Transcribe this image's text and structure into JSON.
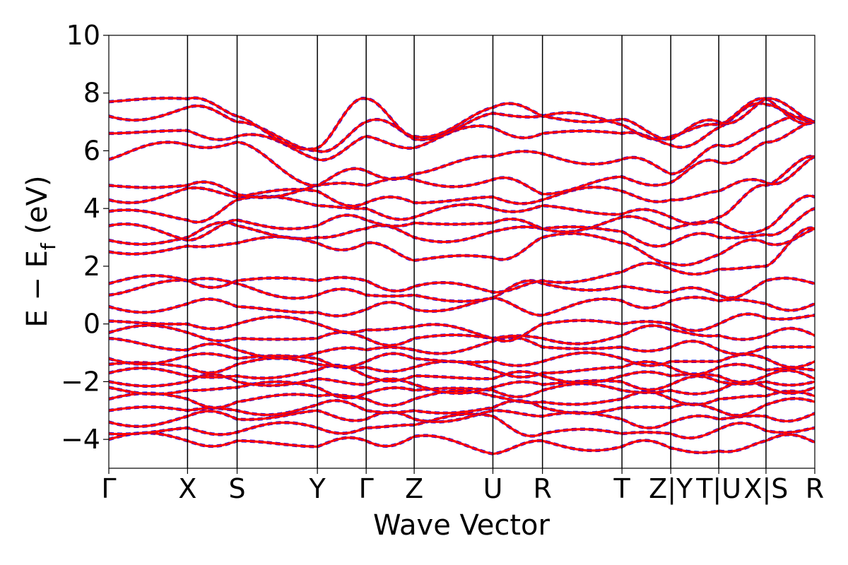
{
  "chart_data": {
    "type": "line",
    "xlabel": "Wave Vector",
    "ylabel": "E − E",
    "ylabel_subscript": "f",
    "ylabel_unit": "(eV)",
    "ylim": [
      -5,
      10
    ],
    "yticks": [
      -4,
      -2,
      0,
      2,
      4,
      6,
      8,
      10
    ],
    "grid": false,
    "legend": "none",
    "high_symmetry_points": [
      {
        "label": "Γ",
        "x": 0.0
      },
      {
        "label": "X",
        "x": 1.0
      },
      {
        "label": "S",
        "x": 1.63
      },
      {
        "label": "Y",
        "x": 2.65
      },
      {
        "label": "Γ",
        "x": 3.27
      },
      {
        "label": "Z",
        "x": 3.88
      },
      {
        "label": "U",
        "x": 4.88
      },
      {
        "label": "R",
        "x": 5.51
      },
      {
        "label": "T",
        "x": 6.52
      },
      {
        "label": "Z|Y",
        "x": 7.14
      },
      {
        "label": "T|U",
        "x": 7.75
      },
      {
        "label": "X|S",
        "x": 8.35
      },
      {
        "label": "R",
        "x": 8.97
      }
    ],
    "xlim": [
      0,
      8.97
    ],
    "series": [
      {
        "color": "#0000ff",
        "style": "dashed"
      },
      {
        "color": "#ff0000",
        "style": "solid"
      }
    ],
    "band_energies_at_symmetry_points": [
      [
        -4.0,
        -4.05,
        -4.05,
        -4.25,
        -4.05,
        -3.9,
        -4.5,
        -4.05,
        -4.25,
        -4.3,
        -4.4,
        -4.05,
        -4.1
      ],
      [
        -3.8,
        -3.6,
        -3.75,
        -3.6,
        -3.6,
        -3.5,
        -3.2,
        -3.8,
        -3.8,
        -3.8,
        -3.65,
        -3.7,
        -3.6
      ],
      [
        -3.4,
        -3.2,
        -3.3,
        -3.0,
        -3.3,
        -3.3,
        -3.0,
        -3.2,
        -3.3,
        -3.4,
        -3.3,
        -3.2,
        -3.1
      ],
      [
        -3.0,
        -3.0,
        -3.0,
        -2.8,
        -3.0,
        -3.0,
        -2.9,
        -2.9,
        -2.9,
        -2.9,
        -3.0,
        -2.8,
        -2.7
      ],
      [
        -2.6,
        -2.6,
        -2.7,
        -2.5,
        -2.6,
        -2.6,
        -2.5,
        -2.7,
        -2.6,
        -2.6,
        -2.6,
        -2.5,
        -2.5
      ],
      [
        -2.2,
        -2.3,
        -2.2,
        -2.2,
        -2.4,
        -2.3,
        -2.3,
        -2.3,
        -2.3,
        -2.3,
        -2.3,
        -2.2,
        -2.2
      ],
      [
        -2.0,
        -2.0,
        -2.0,
        -1.9,
        -2.1,
        -2.1,
        -2.2,
        -2.1,
        -2.0,
        -2.1,
        -2.0,
        -2.0,
        -2.0
      ],
      [
        -1.7,
        -1.8,
        -1.8,
        -1.6,
        -1.8,
        -1.8,
        -1.9,
        -1.8,
        -1.8,
        -1.8,
        -1.8,
        -1.8,
        -1.9
      ],
      [
        -1.4,
        -1.5,
        -1.4,
        -1.4,
        -1.5,
        -1.5,
        -1.6,
        -1.7,
        -1.5,
        -1.5,
        -1.5,
        -1.6,
        -1.6
      ],
      [
        -1.2,
        -1.1,
        -1.2,
        -1.2,
        -1.3,
        -1.2,
        -1.3,
        -1.3,
        -1.2,
        -1.3,
        -1.3,
        -1.2,
        -1.3
      ],
      [
        -0.5,
        -0.9,
        -0.9,
        -1.0,
        -0.9,
        -0.9,
        -0.6,
        -0.8,
        -0.8,
        -0.8,
        -0.9,
        -0.8,
        -0.8
      ],
      [
        -0.3,
        -0.3,
        -0.5,
        -0.5,
        -0.5,
        -0.5,
        -0.5,
        -0.5,
        -0.4,
        -0.2,
        -0.4,
        -0.4,
        -0.4
      ],
      [
        0.1,
        0.0,
        0.0,
        0.0,
        -0.2,
        -0.1,
        -0.5,
        0.0,
        0.0,
        0.0,
        0.0,
        0.2,
        0.3
      ],
      [
        0.6,
        0.7,
        0.6,
        0.4,
        0.5,
        0.5,
        0.9,
        0.3,
        0.8,
        0.8,
        0.8,
        0.7,
        0.7
      ],
      [
        1.0,
        1.5,
        1.4,
        1.0,
        1.0,
        1.0,
        0.9,
        1.4,
        1.3,
        1.1,
        1.0,
        1.5,
        1.4
      ],
      [
        1.4,
        1.5,
        1.5,
        1.5,
        1.5,
        1.3,
        1.1,
        1.5,
        1.8,
        1.9,
        1.9,
        2.0,
        3.3
      ],
      [
        2.5,
        2.7,
        2.8,
        2.8,
        2.8,
        2.2,
        2.3,
        3.0,
        2.8,
        2.1,
        2.4,
        2.8,
        3.3
      ],
      [
        2.9,
        3.0,
        3.4,
        3.0,
        3.3,
        3.0,
        3.2,
        3.3,
        3.2,
        2.8,
        3.0,
        3.1,
        4.0
      ],
      [
        3.4,
        2.9,
        3.6,
        3.4,
        3.6,
        3.5,
        3.5,
        3.3,
        3.7,
        3.3,
        3.5,
        3.3,
        4.4
      ],
      [
        3.9,
        3.6,
        4.3,
        4.1,
        4.0,
        3.7,
        4.0,
        4.1,
        3.8,
        3.7,
        3.7,
        4.8,
        5.8
      ],
      [
        4.3,
        4.7,
        4.4,
        4.6,
        4.2,
        4.2,
        4.4,
        4.3,
        4.6,
        4.3,
        4.6,
        4.9,
        5.8
      ],
      [
        4.8,
        4.8,
        4.5,
        4.8,
        4.8,
        5.0,
        5.0,
        4.5,
        5.1,
        4.9,
        5.6,
        6.3,
        7.0
      ],
      [
        5.7,
        6.2,
        6.3,
        4.8,
        5.3,
        5.2,
        5.8,
        5.9,
        5.7,
        5.2,
        6.2,
        6.8,
        7.0
      ],
      [
        6.6,
        6.7,
        6.5,
        5.7,
        6.5,
        6.1,
        6.8,
        6.6,
        6.6,
        6.2,
        6.8,
        7.6,
        7.0
      ],
      [
        7.2,
        7.5,
        7.0,
        6.0,
        7.0,
        6.4,
        7.3,
        7.2,
        6.9,
        6.5,
        6.9,
        7.8,
        7.0
      ],
      [
        7.7,
        7.8,
        7.2,
        6.1,
        7.8,
        6.5,
        7.5,
        7.2,
        7.1,
        6.4,
        7.0,
        7.8,
        7.0
      ]
    ]
  }
}
